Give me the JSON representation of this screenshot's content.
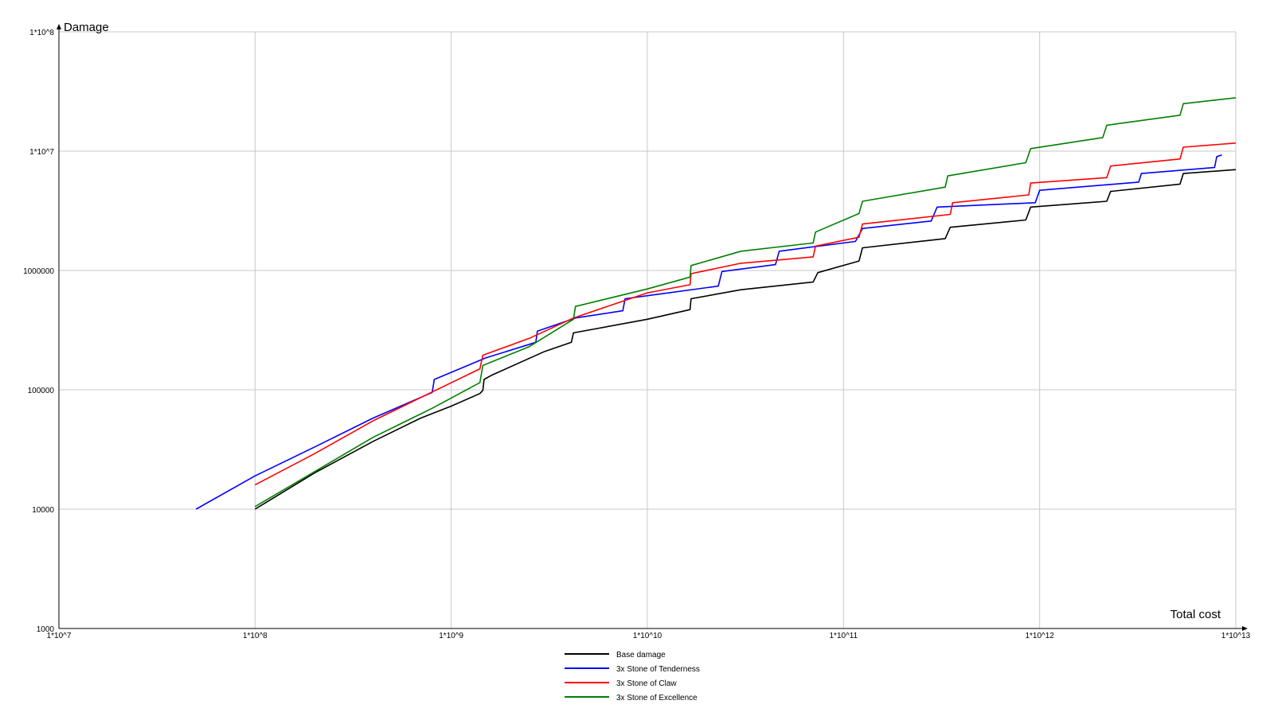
{
  "chart_data": {
    "type": "line",
    "title": "",
    "xlabel": "Total cost",
    "ylabel": "Damage",
    "xscale": "log",
    "yscale": "log",
    "xlim": [
      10000000,
      10000000000000
    ],
    "ylim": [
      1000,
      100000000
    ],
    "grid": true,
    "legend_position": "bottom",
    "x_ticks": [
      {
        "value": 10000000,
        "label": "1*10^7"
      },
      {
        "value": 100000000,
        "label": "1*10^8"
      },
      {
        "value": 1000000000,
        "label": "1*10^9"
      },
      {
        "value": 10000000000,
        "label": "1*10^10"
      },
      {
        "value": 100000000000,
        "label": "1*10^11"
      },
      {
        "value": 1000000000000,
        "label": "1*10^12"
      },
      {
        "value": 10000000000000,
        "label": "1*10^13"
      }
    ],
    "y_ticks": [
      {
        "value": 1000,
        "label": "1000"
      },
      {
        "value": 10000,
        "label": "10000"
      },
      {
        "value": 100000,
        "label": "100000"
      },
      {
        "value": 1000000,
        "label": "1000000"
      },
      {
        "value": 10000000,
        "label": "1*10^7"
      },
      {
        "value": 100000000,
        "label": "1*10^8"
      }
    ],
    "series": [
      {
        "name": "Base damage",
        "color": "#000000",
        "points": [
          [
            100000000,
            10000
          ],
          [
            200000000,
            20000
          ],
          [
            400000000,
            37000
          ],
          [
            700000000,
            58000
          ],
          [
            1000000000,
            73000
          ],
          [
            1400000000,
            93000
          ],
          [
            1450000000,
            99000
          ],
          [
            1470000000,
            122000
          ],
          [
            1600000000,
            132000
          ],
          [
            3000000000,
            210000
          ],
          [
            4100000000,
            250000
          ],
          [
            4200000000,
            300000
          ],
          [
            10000000000,
            390000
          ],
          [
            16500000000,
            470000
          ],
          [
            16700000000,
            580000
          ],
          [
            30000000000,
            690000
          ],
          [
            70000000000,
            800000
          ],
          [
            74000000000,
            960000
          ],
          [
            120000000000,
            1200000
          ],
          [
            125000000000,
            1550000
          ],
          [
            330000000000,
            1850000
          ],
          [
            350000000000,
            2300000
          ],
          [
            850000000000,
            2650000
          ],
          [
            900000000000,
            3400000
          ],
          [
            2200000000000,
            3800000
          ],
          [
            2300000000000,
            4600000
          ],
          [
            5200000000000,
            5300000
          ],
          [
            5400000000000,
            6500000
          ],
          [
            10000000000000,
            7000000
          ]
        ]
      },
      {
        "name": "3x Stone of Tenderness",
        "color": "#0000ff",
        "points": [
          [
            50000000,
            10000
          ],
          [
            100000000,
            19000
          ],
          [
            200000000,
            33000
          ],
          [
            400000000,
            58000
          ],
          [
            800000000,
            95000
          ],
          [
            820000000,
            122000
          ],
          [
            1500000000,
            185000
          ],
          [
            2700000000,
            250000
          ],
          [
            2750000000,
            310000
          ],
          [
            4300000000,
            400000
          ],
          [
            7500000000,
            460000
          ],
          [
            7700000000,
            580000
          ],
          [
            12000000000,
            640000
          ],
          [
            23000000000,
            740000
          ],
          [
            24000000000,
            980000
          ],
          [
            45000000000,
            1120000
          ],
          [
            47000000000,
            1450000
          ],
          [
            115000000000,
            1750000
          ],
          [
            125000000000,
            2250000
          ],
          [
            280000000000,
            2600000
          ],
          [
            300000000000,
            3400000
          ],
          [
            950000000000,
            3700000
          ],
          [
            1000000000000,
            4700000
          ],
          [
            3200000000000,
            5500000
          ],
          [
            3300000000000,
            6500000
          ],
          [
            7800000000000,
            7300000
          ],
          [
            8000000000000,
            9000000
          ],
          [
            8500000000000,
            9300000
          ]
        ]
      },
      {
        "name": "3x Stone of Claw",
        "color": "#ff0000",
        "points": [
          [
            100000000,
            16000
          ],
          [
            200000000,
            29000
          ],
          [
            400000000,
            55000
          ],
          [
            800000000,
            96000
          ],
          [
            1400000000,
            150000
          ],
          [
            1450000000,
            195000
          ],
          [
            2500000000,
            270000
          ],
          [
            4200000000,
            400000
          ],
          [
            10000000000,
            650000
          ],
          [
            16500000000,
            760000
          ],
          [
            16700000000,
            940000
          ],
          [
            30000000000,
            1150000
          ],
          [
            70000000000,
            1300000
          ],
          [
            72000000000,
            1600000
          ],
          [
            120000000000,
            1900000
          ],
          [
            125000000000,
            2450000
          ],
          [
            350000000000,
            2950000
          ],
          [
            360000000000,
            3700000
          ],
          [
            880000000000,
            4300000
          ],
          [
            900000000000,
            5400000
          ],
          [
            2200000000000,
            6000000
          ],
          [
            2300000000000,
            7500000
          ],
          [
            5200000000000,
            8600000
          ],
          [
            5400000000000,
            10800000
          ],
          [
            10000000000000,
            11700000
          ]
        ]
      },
      {
        "name": "3x Stone of Excellence",
        "color": "#008000",
        "points": [
          [
            100000000,
            10500
          ],
          [
            200000000,
            20500
          ],
          [
            400000000,
            40000
          ],
          [
            800000000,
            70000
          ],
          [
            1400000000,
            115000
          ],
          [
            1450000000,
            160000
          ],
          [
            2500000000,
            230000
          ],
          [
            4200000000,
            390000
          ],
          [
            4300000000,
            500000
          ],
          [
            10000000000,
            700000
          ],
          [
            16500000000,
            880000
          ],
          [
            16700000000,
            1100000
          ],
          [
            30000000000,
            1450000
          ],
          [
            70000000000,
            1700000
          ],
          [
            72000000000,
            2100000
          ],
          [
            120000000000,
            3000000
          ],
          [
            125000000000,
            3800000
          ],
          [
            330000000000,
            5000000
          ],
          [
            340000000000,
            6200000
          ],
          [
            850000000000,
            8000000
          ],
          [
            900000000000,
            10500000
          ],
          [
            2100000000000,
            13000000
          ],
          [
            2200000000000,
            16500000
          ],
          [
            5200000000000,
            20000000
          ],
          [
            5400000000000,
            25000000
          ],
          [
            10000000000000,
            28000000
          ]
        ]
      }
    ]
  }
}
